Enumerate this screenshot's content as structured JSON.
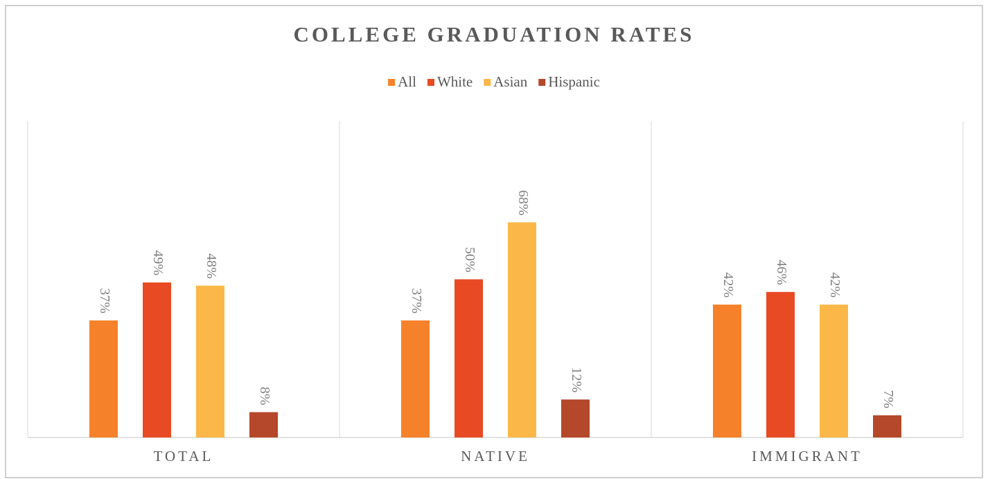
{
  "chart_data": {
    "type": "bar",
    "title": "COLLEGE GRADUATION RATES",
    "categories": [
      "TOTAL",
      "NATIVE",
      "IMMIGRANT"
    ],
    "series": [
      {
        "name": "All",
        "color": "#f5822a",
        "values": [
          37,
          37,
          42
        ],
        "value_labels": [
          "37%",
          "37%",
          "42%"
        ]
      },
      {
        "name": "White",
        "color": "#e84a23",
        "values": [
          49,
          50,
          46
        ],
        "value_labels": [
          "49%",
          "50%",
          "46%"
        ]
      },
      {
        "name": "Asian",
        "color": "#fbb848",
        "values": [
          48,
          68,
          42
        ],
        "value_labels": [
          "48%",
          "68%",
          "42%"
        ]
      },
      {
        "name": "Hispanic",
        "color": "#b5472a",
        "values": [
          8,
          12,
          7
        ],
        "value_labels": [
          "8%",
          "12%",
          "7%"
        ]
      }
    ],
    "ylim": [
      0,
      100
    ],
    "legend": "top"
  }
}
